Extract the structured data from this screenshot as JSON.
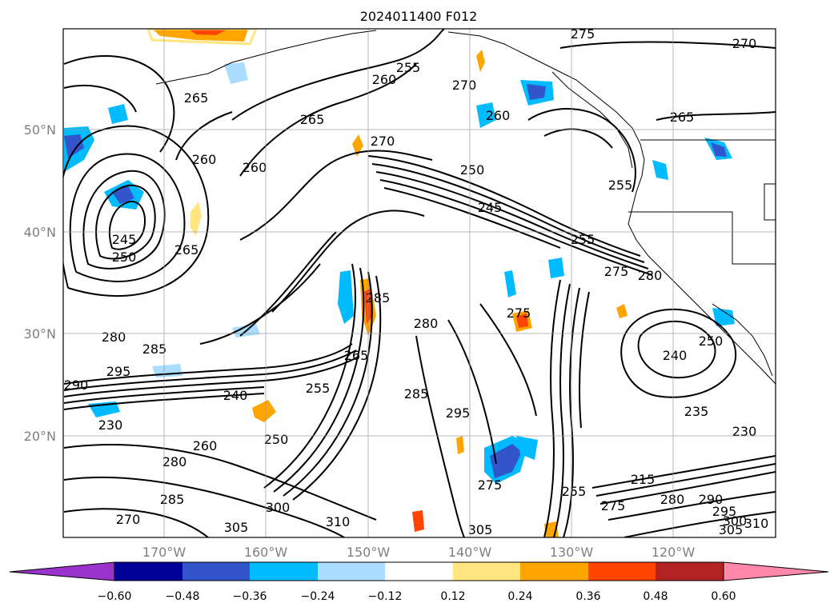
{
  "title": "2024011400 F012",
  "map": {
    "lat_ticks": [
      "50°N",
      "40°N",
      "30°N",
      "20°N"
    ],
    "lon_ticks": [
      "170°W",
      "160°W",
      "150°W",
      "140°W",
      "130°W",
      "120°W"
    ],
    "grid": true
  },
  "colorbar": {
    "ticks": [
      "−0.60",
      "−0.48",
      "−0.36",
      "−0.24",
      "−0.12",
      "0.12",
      "0.24",
      "0.36",
      "0.48",
      "0.60"
    ],
    "colors": [
      "#9933cc",
      "#000099",
      "#3355cc",
      "#00bbff",
      "#aaddff",
      "#ffffff",
      "#ffe680",
      "#ffa500",
      "#ff4400",
      "#b22222",
      "#ff88aa"
    ],
    "extend": "both"
  },
  "contour_labels": [
    "275",
    "270",
    "265",
    "255",
    "260",
    "270",
    "265",
    "260",
    "270",
    "260",
    "250",
    "245",
    "255",
    "265",
    "245",
    "250",
    "260",
    "255",
    "285",
    "275",
    "280",
    "280",
    "285",
    "295",
    "290",
    "230",
    "240",
    "255",
    "265",
    "250",
    "260",
    "280",
    "285",
    "270",
    "300",
    "305",
    "310",
    "285",
    "295",
    "275",
    "255",
    "275",
    "305",
    "240",
    "250",
    "235",
    "230",
    "215",
    "280",
    "290",
    "295",
    "300",
    "305",
    "310",
    "265",
    "275",
    "280"
  ]
}
